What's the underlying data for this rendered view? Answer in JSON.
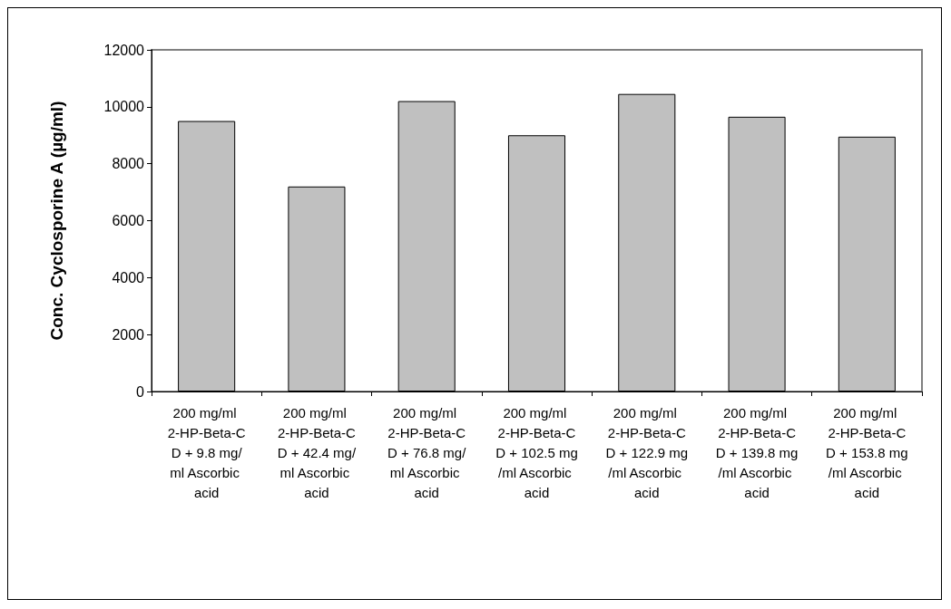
{
  "chart_data": {
    "type": "bar",
    "ylabel": "Conc. Cyclosporine A (µg/ml)",
    "categories": [
      "200 mg/ml 2-HP-Beta-CD + 9.8 mg/ml Ascorbic acid",
      "200 mg/ml 2-HP-Beta-CD + 42.4 mg/ml Ascorbic acid",
      "200 mg/ml 2-HP-Beta-CD + 76.8 mg/ml Ascorbic acid",
      "200 mg/ml 2-HP-Beta-CD + 102.5 mg/ml Ascorbic acid",
      "200 mg/ml 2-HP-Beta-CD + 122.9 mg/ml Ascorbic acid",
      "200 mg/ml 2-HP-Beta-CD + 139.8 mg/ml Ascorbic acid",
      "200 mg/ml 2-HP-Beta-CD + 153.8 mg/ml Ascorbic acid"
    ],
    "values": [
      9500,
      7200,
      10200,
      9000,
      10450,
      9650,
      8950
    ],
    "color": "#c0c0c0",
    "ylim": [
      0,
      12000
    ],
    "yticks": [
      0,
      2000,
      4000,
      6000,
      8000,
      10000,
      12000
    ]
  }
}
